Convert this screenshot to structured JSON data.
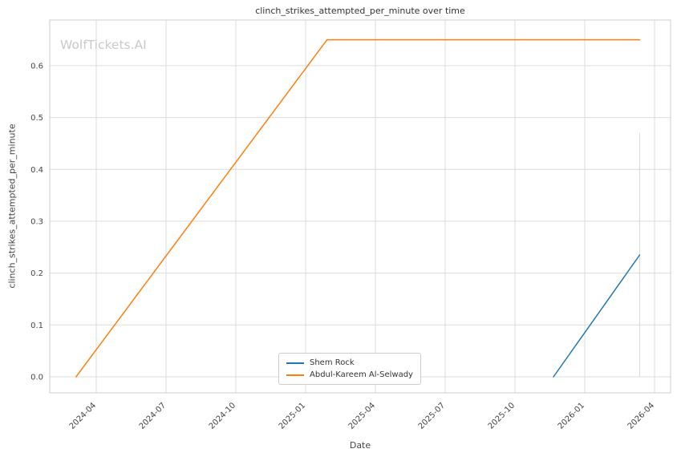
{
  "watermark": "WolfTickets.AI",
  "chart_data": {
    "type": "line",
    "title": "clinch_strikes_attempted_per_minute over time",
    "xlabel": "Date",
    "ylabel": "clinch_strikes_attempted_per_minute",
    "xlim": [
      "2024-02-01",
      "2026-04-22"
    ],
    "ylim": [
      -0.031,
      0.688
    ],
    "grid": true,
    "grid_color": "#dcdcdc",
    "border_color": "#cccccc",
    "tick_color": "#444444",
    "legend_position": "lower center",
    "x_ticks": [
      {
        "value": "2024-04-01",
        "label": "2024-04"
      },
      {
        "value": "2024-07-01",
        "label": "2024-07"
      },
      {
        "value": "2024-10-01",
        "label": "2024-10"
      },
      {
        "value": "2025-01-01",
        "label": "2025-01"
      },
      {
        "value": "2025-04-01",
        "label": "2025-04"
      },
      {
        "value": "2025-07-01",
        "label": "2025-07"
      },
      {
        "value": "2025-10-01",
        "label": "2025-10"
      },
      {
        "value": "2026-01-01",
        "label": "2026-01"
      },
      {
        "value": "2026-04-01",
        "label": "2026-04"
      }
    ],
    "y_ticks": [
      {
        "value": 0.0,
        "label": "0.0"
      },
      {
        "value": 0.1,
        "label": "0.1"
      },
      {
        "value": 0.2,
        "label": "0.2"
      },
      {
        "value": 0.3,
        "label": "0.3"
      },
      {
        "value": 0.4,
        "label": "0.4"
      },
      {
        "value": 0.5,
        "label": "0.5"
      },
      {
        "value": 0.6,
        "label": "0.6"
      }
    ],
    "series": [
      {
        "name": "Shem Rock",
        "color": "#1f77b4",
        "points": [
          [
            "2025-11-21",
            0.0
          ],
          [
            "2026-03-12",
            0.235
          ]
        ]
      },
      {
        "name": "Abdul-Kareem Al-Selwady",
        "color": "#ff7f0e",
        "points": [
          [
            "2024-03-05",
            0.0
          ],
          [
            "2025-01-29",
            0.65
          ],
          [
            "2026-03-12",
            0.65
          ]
        ]
      }
    ],
    "annotations": [
      {
        "type": "vline",
        "x": "2026-03-12",
        "y_from": 0.0,
        "y_to": 0.47,
        "color": "#d9d9d9"
      }
    ]
  }
}
